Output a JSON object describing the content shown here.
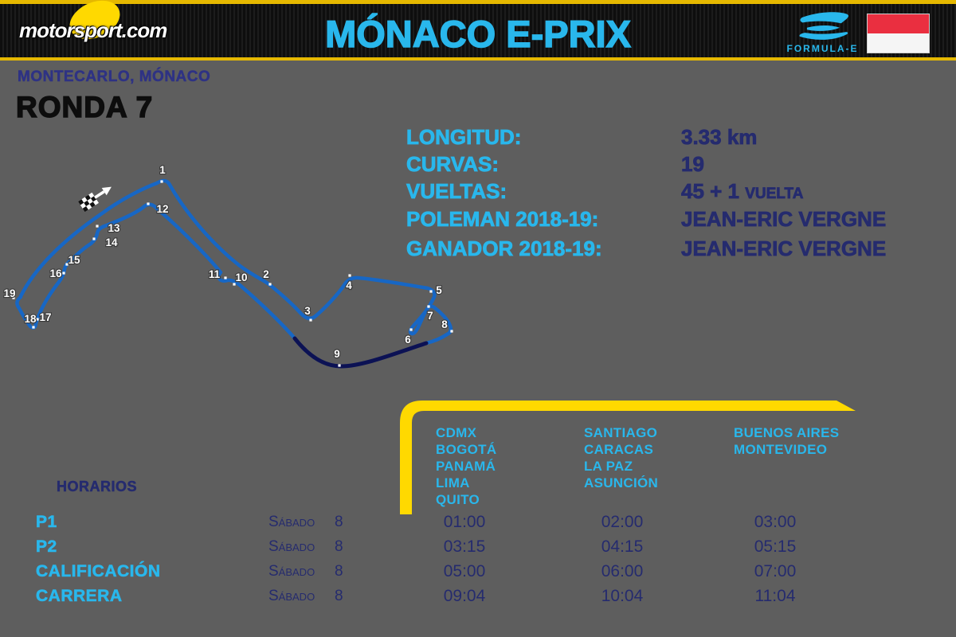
{
  "header": {
    "brand": "motorsport.com",
    "title": "MÓNACO E-PRIX",
    "formula_e_label": "FORMULA-E",
    "icons": [
      "motorsport-logo",
      "formula-e-logo",
      "monaco-flag-icon"
    ]
  },
  "location": "MONTECARLO, MÓNACO",
  "round": "RONDA 7",
  "stats": {
    "rows": [
      {
        "label": "LONGITUD:",
        "value": "3.33 km"
      },
      {
        "label": "CURVAS:",
        "value": "19"
      },
      {
        "label": "VUELTAS:",
        "value": "45 + 1 ",
        "value_suffix": "VUELTA"
      },
      {
        "label": "POLEMAN 2018-19:",
        "value": "JEAN-ERIC VERGNE"
      },
      {
        "label": "GANADOR 2018-19:",
        "value": "JEAN-ERIC VERGNE"
      }
    ]
  },
  "track": {
    "name": "monaco-circuit",
    "start_finish_icon": "checkered-flag-icon",
    "direction_icon": "northeast-arrow-icon",
    "corners": [
      {
        "n": "1",
        "dot": [
          203,
          228
        ],
        "label": [
          204,
          213
        ]
      },
      {
        "n": "2",
        "dot": [
          339,
          357
        ],
        "label": [
          334,
          344
        ]
      },
      {
        "n": "3",
        "dot": [
          390,
          402
        ],
        "label": [
          386,
          390
        ]
      },
      {
        "n": "4",
        "dot": [
          439,
          346
        ],
        "label": [
          438,
          358
        ]
      },
      {
        "n": "5",
        "dot": [
          541,
          366
        ],
        "label": [
          551,
          364
        ]
      },
      {
        "n": "6",
        "dot": [
          516,
          414
        ],
        "label": [
          512,
          426
        ]
      },
      {
        "n": "7",
        "dot": [
          538,
          385
        ],
        "label": [
          540,
          396
        ]
      },
      {
        "n": "8",
        "dot": [
          567,
          416
        ],
        "label": [
          558,
          407
        ]
      },
      {
        "n": "9",
        "dot": [
          426,
          459
        ],
        "label": [
          423,
          444
        ]
      },
      {
        "n": "10",
        "dot": [
          294,
          357
        ],
        "label": [
          303,
          348
        ]
      },
      {
        "n": "11",
        "dot": [
          283,
          349
        ],
        "label": [
          269,
          344
        ]
      },
      {
        "n": "12",
        "dot": [
          186,
          256
        ],
        "label": [
          204,
          262
        ]
      },
      {
        "n": "13",
        "dot": [
          122,
          284
        ],
        "label": [
          143,
          286
        ]
      },
      {
        "n": "14",
        "dot": [
          118,
          300
        ],
        "label": [
          140,
          304
        ]
      },
      {
        "n": "15",
        "dot": [
          84,
          332
        ],
        "label": [
          93,
          326
        ]
      },
      {
        "n": "16",
        "dot": [
          80,
          343
        ],
        "label": [
          70,
          343
        ]
      },
      {
        "n": "17",
        "dot": [
          47,
          401
        ],
        "label": [
          57,
          398
        ]
      },
      {
        "n": "18",
        "dot": [
          42,
          411
        ],
        "label": [
          38,
          400
        ]
      },
      {
        "n": "19",
        "dot": [
          17,
          374
        ],
        "label": [
          12,
          368
        ]
      }
    ]
  },
  "timezones": {
    "columns": [
      {
        "cities": [
          "CDMX",
          "BOGOTÁ",
          "PANAMÁ",
          "LIMA",
          "QUITO"
        ]
      },
      {
        "cities": [
          "SANTIAGO",
          "CARACAS",
          "LA PAZ",
          "ASUNCIÓN"
        ]
      },
      {
        "cities": [
          "BUENOS AIRES",
          "MONTEVIDEO"
        ]
      }
    ]
  },
  "schedule": {
    "heading": "HORARIOS",
    "rows": [
      {
        "session": "P1",
        "day": "Sábado",
        "date": "8",
        "times": [
          "01:00",
          "02:00",
          "03:00"
        ]
      },
      {
        "session": "P2",
        "day": "Sábado",
        "date": "8",
        "times": [
          "03:15",
          "04:15",
          "05:15"
        ]
      },
      {
        "session": "CALIFICACIÓN",
        "day": "Sábado",
        "date": "8",
        "times": [
          "05:00",
          "06:00",
          "07:00"
        ]
      },
      {
        "session": "CARRERA",
        "day": "Sábado",
        "date": "8",
        "times": [
          "09:04",
          "10:04",
          "11:04"
        ]
      }
    ]
  },
  "colors": {
    "background": "#5e5e5e",
    "header_black": "#141414",
    "yellow": "#ffd900",
    "cyan": "#29b7ec",
    "navy": "#252b6e",
    "track_blue": "#1767c5",
    "tunnel_navy": "#0c1254",
    "flag_red": "#ea2f40",
    "white": "#ffffff"
  }
}
